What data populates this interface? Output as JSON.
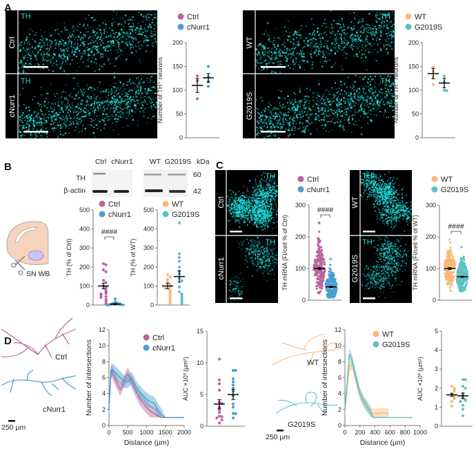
{
  "panels": {
    "a": "A",
    "b": "B",
    "c": "C",
    "d": "D"
  },
  "colors": {
    "ctrl": "#b8659f",
    "cnurr1": "#4b9fce",
    "wt": "#f9b87a",
    "g2019s": "#5fc0c0",
    "cyan": "#22e0e0"
  },
  "panel_a": {
    "left_images": {
      "row1_label": "Ctrl",
      "row2_label": "cNurr1",
      "stain1": "TH",
      "stain2": "TH"
    },
    "right_images": {
      "row1_label": "WT",
      "row2_label": "G2019S",
      "stain1": "TH",
      "stain2": "TH"
    }
  },
  "panel_b": {
    "blot": {
      "lanes": [
        "Ctrl",
        "cNurr1",
        "WT",
        "G2019S"
      ],
      "kda_label": "kDa",
      "rows": [
        "TH",
        "β-actin"
      ],
      "kda": [
        "60",
        "42"
      ]
    },
    "diagram_label": "SN WB"
  },
  "panel_c": {
    "left_images": {
      "row1_label": "Ctrl",
      "row2_label": "cNurr1",
      "stain1": "TH",
      "stain2": "TH"
    },
    "right_images": {
      "row1_label": "WT",
      "row2_label": "G2019S",
      "stain1": "TH",
      "stain2": "TH"
    }
  },
  "panel_d": {
    "left_tracings": {
      "label1": "Ctrl",
      "label2": "cNurr1",
      "scale": "250 µm"
    },
    "right_tracings": {
      "label1": "WT",
      "label2": "G2019S",
      "scale": "250 µm"
    }
  },
  "chart_data": [
    {
      "id": "A1",
      "type": "scatter",
      "ylabel": "Number of TH⁺ neurons",
      "ylim": [
        0,
        200
      ],
      "yticks": [
        0,
        50,
        100,
        150,
        200
      ],
      "groups": [
        {
          "name": "Ctrl",
          "color": "#b8659f",
          "points": [
            130,
            120,
            82
          ],
          "mean": 110,
          "sem": 15
        },
        {
          "name": "cNurr1",
          "color": "#4b9fce",
          "points": [
            150,
            128,
            118,
            108
          ],
          "mean": 126,
          "sem": 9
        }
      ]
    },
    {
      "id": "A2",
      "type": "scatter",
      "ylabel": "Number of TH⁺ neurons",
      "ylim": [
        0,
        200
      ],
      "yticks": [
        0,
        50,
        100,
        150,
        200
      ],
      "groups": [
        {
          "name": "WT",
          "color": "#f9b87a",
          "points": [
            148,
            140,
            128,
            112
          ],
          "mean": 135,
          "sem": 11
        },
        {
          "name": "G2019S",
          "color": "#5fc0c0",
          "points": [
            130,
            118,
            100,
            99
          ],
          "mean": 115,
          "sem": 10
        }
      ]
    },
    {
      "id": "B1",
      "type": "scatter",
      "ylabel": "TH (% of Ctrl)",
      "ylim": [
        0,
        500
      ],
      "yticks": [
        0,
        100,
        200,
        300,
        400,
        500
      ],
      "significance": "####",
      "groups": [
        {
          "name": "Ctrl",
          "color": "#b8659f",
          "points": [
            218,
            212,
            185,
            175,
            130,
            118,
            100,
            92,
            85,
            75,
            70,
            62,
            58,
            50,
            45,
            40,
            30,
            20,
            8
          ],
          "mean": 100,
          "sem": 15
        },
        {
          "name": "cNurr1",
          "color": "#4b9fce",
          "points": [
            32,
            16,
            10,
            8,
            5,
            3,
            2,
            1,
            0
          ],
          "mean": 5,
          "sem": 3
        }
      ]
    },
    {
      "id": "B2",
      "type": "scatter",
      "ylabel": "TH (% of WT)",
      "ylim": [
        0,
        500
      ],
      "yticks": [
        0,
        100,
        200,
        300,
        400,
        500
      ],
      "groups": [
        {
          "name": "WT",
          "color": "#f9b87a",
          "points": [
            160,
            148,
            135,
            122,
            110,
            100,
            95,
            88,
            80,
            70,
            60,
            50,
            40,
            30,
            20,
            10
          ],
          "mean": 100,
          "sem": 15
        },
        {
          "name": "G2019S",
          "color": "#5fc0c0",
          "points": [
            432,
            270,
            250,
            230,
            200,
            180,
            165,
            140,
            128,
            95,
            70,
            58,
            50,
            40,
            30,
            18,
            8
          ],
          "mean": 150,
          "sem": 30
        }
      ]
    },
    {
      "id": "C1",
      "type": "scatter",
      "ylabel": "TH mRNA (FI/cell % of Ctrl)",
      "ylim": [
        0,
        300
      ],
      "yticks": [
        0,
        100,
        200,
        300
      ],
      "significance": "####",
      "groups": [
        {
          "name": "Ctrl",
          "color": "#b8659f",
          "distribution": {
            "n": 220,
            "mean": 100,
            "sd": 40,
            "min": 22,
            "max": 245
          },
          "mean": 100,
          "sem": 3
        },
        {
          "name": "cNurr1",
          "color": "#4b9fce",
          "distribution": {
            "n": 220,
            "mean": 42,
            "sd": 25,
            "min": 8,
            "max": 130
          },
          "mean": 42,
          "sem": 2
        }
      ]
    },
    {
      "id": "C2",
      "type": "scatter",
      "ylabel": "TH mRNA (FI/cell % of WT)",
      "ylim": [
        0,
        300
      ],
      "yticks": [
        0,
        100,
        200,
        300
      ],
      "significance": "####",
      "groups": [
        {
          "name": "WT",
          "color": "#f9b87a",
          "distribution": {
            "n": 220,
            "mean": 100,
            "sd": 30,
            "min": 30,
            "max": 192
          },
          "mean": 100,
          "sem": 3
        },
        {
          "name": "G2019S",
          "color": "#5fc0c0",
          "distribution": {
            "n": 220,
            "mean": 74,
            "sd": 28,
            "min": 28,
            "max": 168
          },
          "mean": 74,
          "sem": 2
        }
      ]
    },
    {
      "id": "D1",
      "type": "line",
      "xlabel": "Distance (µm)",
      "ylabel": "Number of intersections",
      "xlim": [
        0,
        2000
      ],
      "ylim": [
        0,
        12
      ],
      "xticks": [
        0,
        500,
        1000,
        1500,
        2000
      ],
      "yticks": [
        0,
        2,
        4,
        6,
        8,
        10,
        12
      ],
      "series": [
        {
          "name": "Ctrl",
          "color": "#b8659f",
          "x": [
            0,
            50,
            100,
            200,
            300,
            400,
            500,
            600,
            700,
            800,
            900,
            1000,
            1100,
            1200,
            1300,
            1400,
            1600,
            2000
          ],
          "y": [
            2,
            7,
            6.5,
            5.5,
            4.5,
            5.5,
            6.5,
            5.5,
            4.5,
            3.5,
            2.8,
            2.3,
            1.8,
            1.5,
            1.2,
            1,
            1,
            1
          ],
          "err": 0.8
        },
        {
          "name": "cNurr1",
          "color": "#4b9fce",
          "x": [
            0,
            50,
            100,
            200,
            300,
            400,
            500,
            600,
            700,
            800,
            900,
            1000,
            1100,
            1200,
            1300,
            1400,
            1500,
            2000
          ],
          "y": [
            2,
            6.5,
            7,
            6.5,
            6,
            5.5,
            5.5,
            6,
            5,
            4.3,
            3.8,
            3.3,
            3,
            2.8,
            2,
            1.3,
            1,
            1
          ],
          "err": 0.8
        }
      ]
    },
    {
      "id": "D2",
      "type": "scatter",
      "ylabel": "AUC ×10³ (µm²)",
      "ylim": [
        0,
        15
      ],
      "yticks": [
        0,
        5,
        10,
        15
      ],
      "groups": [
        {
          "name": "Ctrl",
          "color": "#b8659f",
          "points": [
            10.6,
            7.3,
            6.7,
            5.7,
            3.8,
            3.6,
            3,
            2.6,
            2.2,
            1.6,
            1.5,
            1.3,
            1,
            0.5
          ],
          "mean": 3.5,
          "sem": 0.7
        },
        {
          "name": "cNurr1",
          "color": "#4b9fce",
          "points": [
            8.8,
            8.8,
            7.5,
            7,
            6.5,
            6,
            5.5,
            4.8,
            3.5,
            3,
            2,
            2,
            1.3
          ],
          "mean": 5,
          "sem": 0.8
        }
      ]
    },
    {
      "id": "D3",
      "type": "line",
      "xlabel": "Distance (µm)",
      "ylabel": "Number of intersections",
      "xlim": [
        0,
        1000
      ],
      "ylim": [
        0,
        12
      ],
      "xticks": [
        0,
        200,
        400,
        600,
        800,
        1000
      ],
      "yticks": [
        0,
        2,
        4,
        6,
        8,
        10,
        12
      ],
      "series": [
        {
          "name": "WT",
          "color": "#f9b87a",
          "x": [
            0,
            60,
            100,
            150,
            200,
            250,
            300,
            350,
            400,
            500,
            580
          ],
          "y": [
            2,
            7.5,
            7.5,
            5.5,
            4,
            3,
            2.3,
            1.6,
            1.5,
            1.6,
            1.5
          ],
          "err": 0.6
        },
        {
          "name": "G2019S",
          "color": "#5fc0c0",
          "x": [
            0,
            60,
            100,
            150,
            200,
            250,
            300,
            350,
            380,
            900
          ],
          "y": [
            2,
            9,
            8,
            6,
            4,
            3,
            2.3,
            1.5,
            1,
            1
          ],
          "err": 0.7
        }
      ]
    },
    {
      "id": "D4",
      "type": "scatter",
      "ylabel": "AUC ×10³ (µm²)",
      "ylim": [
        0,
        5
      ],
      "yticks": [
        0,
        1,
        2,
        3,
        4,
        5
      ],
      "groups": [
        {
          "name": "WT",
          "color": "#f9b87a",
          "points": [
            2.1,
            2,
            1.9,
            1.85,
            1.7,
            1.6,
            1.5,
            1.45,
            1.3,
            1.05
          ],
          "mean": 1.65,
          "sem": 0.08
        },
        {
          "name": "G2019S",
          "color": "#5fc0c0",
          "points": [
            2.45,
            2.45,
            2.1,
            2,
            1.7,
            1.5,
            1.4,
            1.35,
            1.3,
            1.1,
            0.9,
            0.55
          ],
          "mean": 1.6,
          "sem": 0.15
        }
      ]
    }
  ]
}
